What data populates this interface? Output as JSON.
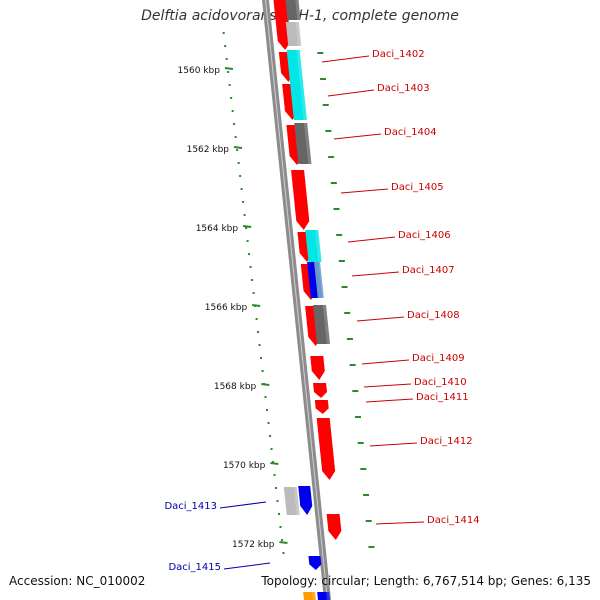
{
  "title": "Delftia acidovorans SPH-1, complete genome",
  "footer": {
    "accession": "Accession: NC_010002",
    "summary": "Topology: circular; Length: 6,767,514 bp; Genes: 6,135"
  },
  "colors": {
    "backbone": "#8c8c8c",
    "ruler": "#2a8a2a",
    "forward_label": "#cc0000",
    "reverse_label": "#0000aa",
    "gene_red": "#ff0000",
    "gene_cyan": "#00e5e5",
    "gene_gray": "#666666",
    "gene_lightgray": "#bbbbbb",
    "gene_blue": "#0000ee",
    "gene_orange": "#ff9900"
  },
  "scale": {
    "ticks": [
      {
        "label": "1560 kbp",
        "kbp": 1560
      },
      {
        "label": "1562 kbp",
        "kbp": 1562
      },
      {
        "label": "1564 kbp",
        "kbp": 1564
      },
      {
        "label": "1566 kbp",
        "kbp": 1566
      },
      {
        "label": "1568 kbp",
        "kbp": 1568
      },
      {
        "label": "1570 kbp",
        "kbp": 1570
      },
      {
        "label": "1572 kbp",
        "kbp": 1572
      }
    ]
  },
  "gene_labels": {
    "forward": [
      "Daci_1402",
      "Daci_1403",
      "Daci_1404",
      "Daci_1405",
      "Daci_1406",
      "Daci_1407",
      "Daci_1408",
      "Daci_1409",
      "Daci_1410",
      "Daci_1411",
      "Daci_1412",
      "Daci_1414"
    ],
    "reverse": [
      "Daci_1413",
      "Daci_1415"
    ]
  }
}
